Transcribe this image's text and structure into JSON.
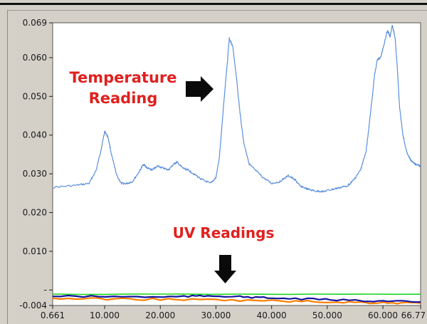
{
  "chart_data": {
    "type": "line",
    "title": "",
    "xlabel": "",
    "ylabel": "",
    "xlim": [
      0.661,
      66.77
    ],
    "ylim": [
      -0.004,
      0.069
    ],
    "x_ticks": [
      {
        "v": 0.661,
        "label": "0.661"
      },
      {
        "v": 10,
        "label": "10.000"
      },
      {
        "v": 20,
        "label": "20.000"
      },
      {
        "v": 30,
        "label": "30.000"
      },
      {
        "v": 40,
        "label": "40.000"
      },
      {
        "v": 50,
        "label": "50.000"
      },
      {
        "v": 60,
        "label": "60.000"
      },
      {
        "v": 66.77,
        "label": "66.77"
      }
    ],
    "y_ticks": [
      {
        "v": 0.069,
        "label": "0.069"
      },
      {
        "v": 0.06,
        "label": "0.060"
      },
      {
        "v": 0.05,
        "label": "0.050"
      },
      {
        "v": 0.04,
        "label": "0.040"
      },
      {
        "v": 0.03,
        "label": "0.030"
      },
      {
        "v": 0.02,
        "label": "0.020"
      },
      {
        "v": 0.01,
        "label": "0.010"
      },
      {
        "v": 0.0,
        "label": "-"
      },
      {
        "v": -0.004,
        "label": "-0.004"
      }
    ],
    "grid": false,
    "series": [
      {
        "color": "#5b8fdc",
        "x": [
          0.661,
          4.8,
          7.2,
          8.5,
          9.4,
          10.0,
          10.6,
          11.3,
          12.2,
          13.0,
          14.0,
          15.0,
          16.2,
          17.0,
          17.6,
          18.5,
          19.5,
          20.5,
          21.5,
          22.4,
          23.0,
          24.0,
          25.0,
          26.0,
          27.5,
          29.0,
          30.0,
          30.6,
          31.0,
          31.5,
          32.0,
          32.4,
          33.0,
          33.6,
          34.3,
          35.0,
          36.0,
          37.0,
          38.5,
          40.0,
          41.5,
          43.0,
          44.2,
          45.0,
          46.5,
          48.0,
          49.5,
          51.0,
          52.5,
          53.7,
          54.8,
          56.0,
          57.0,
          57.8,
          58.5,
          59.0,
          59.6,
          60.2,
          60.8,
          61.3,
          61.7,
          62.2,
          62.6,
          63.0,
          63.6,
          64.3,
          65.0,
          65.8,
          66.77
        ],
        "y": [
          0.0265,
          0.027,
          0.0275,
          0.031,
          0.0365,
          0.041,
          0.0395,
          0.0345,
          0.0295,
          0.0275,
          0.0275,
          0.028,
          0.0305,
          0.0325,
          0.0315,
          0.031,
          0.032,
          0.0315,
          0.031,
          0.0325,
          0.033,
          0.0315,
          0.031,
          0.03,
          0.0285,
          0.0275,
          0.029,
          0.034,
          0.041,
          0.05,
          0.058,
          0.065,
          0.063,
          0.056,
          0.046,
          0.038,
          0.0325,
          0.031,
          0.029,
          0.0275,
          0.028,
          0.0295,
          0.0285,
          0.027,
          0.026,
          0.0255,
          0.0255,
          0.026,
          0.0265,
          0.027,
          0.0285,
          0.031,
          0.036,
          0.046,
          0.0555,
          0.0595,
          0.06,
          0.0635,
          0.067,
          0.0655,
          0.0685,
          0.065,
          0.057,
          0.047,
          0.04,
          0.0355,
          0.0335,
          0.0325,
          0.032
        ]
      },
      {
        "color": "#1ed21e",
        "x": [
          0.661,
          66.77
        ],
        "y": [
          -0.0011,
          -0.0011
        ]
      },
      {
        "color": "#ff7f00",
        "x": [
          0.661,
          20.0,
          40.0,
          55.0,
          66.77
        ],
        "y": [
          -0.0022,
          -0.0024,
          -0.0028,
          -0.0032,
          -0.0034
        ]
      },
      {
        "color": "#1414a0",
        "x": [
          0.661,
          20.0,
          30.0,
          40.0,
          55.0,
          66.77
        ],
        "y": [
          -0.0016,
          -0.0018,
          -0.0015,
          -0.0021,
          -0.0027,
          -0.0031
        ]
      }
    ],
    "annotations": [
      {
        "text": "Temperature",
        "target": "peak near x=32"
      },
      {
        "text": "Reading",
        "target": "peak near x=32"
      },
      {
        "text": "UV Readings",
        "target": "baseline near x=32"
      }
    ]
  }
}
